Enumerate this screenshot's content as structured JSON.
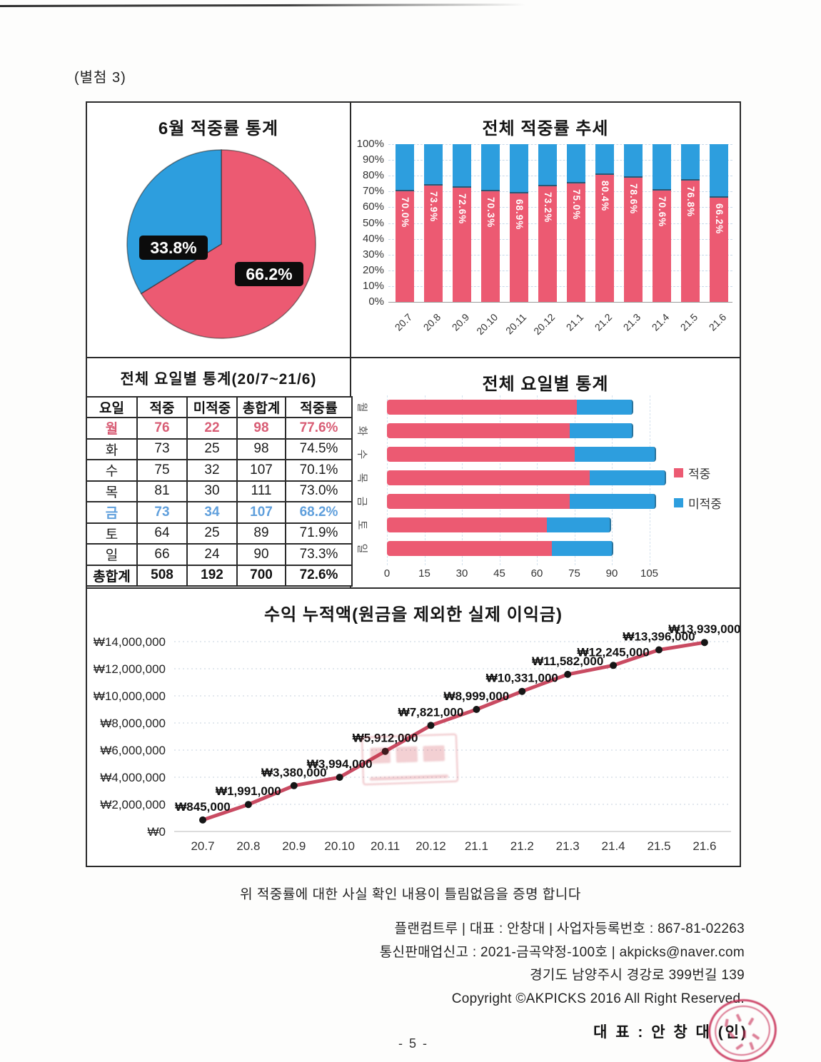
{
  "page": {
    "attachment_label": "(별첨 3)",
    "certify_text": "위 적중률에 대한 사실 확인 내용이 틀림없음을 증명 합니다",
    "company_line1": "플랜컴트루 | 대표 : 안창대 | 사업자등록번호 : 867-81-02263",
    "company_line2": "통신판매업신고 : 2021-금곡약정-100호 | akpicks@naver.com",
    "company_line3": "경기도 남양주시 경강로 399번길 139",
    "copyright": "Copyright ©AKPICKS 2016 All Right Reserved.",
    "representative": "대 표 : 안 창 대  (인)",
    "page_number": "- 5 -"
  },
  "colors": {
    "hit": "#ec5a72",
    "miss": "#2d9ede",
    "line": "#c94b62",
    "marker": "#161616",
    "table_red": "#d85c74",
    "table_blue": "#5f9fdc",
    "seal_red": "#c72c54"
  },
  "chart_data": [
    {
      "id": "june_hit_rate_pie",
      "type": "pie",
      "title": "6월 적중률 통계",
      "slices": [
        {
          "label": "66.2%",
          "value": 66.2,
          "color": "#ec5a72"
        },
        {
          "label": "33.8%",
          "value": 33.8,
          "color": "#2d9ede"
        }
      ],
      "start_angle": "12-oclock, clockwise"
    },
    {
      "id": "overall_hit_rate_trend",
      "type": "bar",
      "subtype": "stacked-100-percent-column",
      "title": "전체 적중률 추세",
      "categories": [
        "20.7",
        "20.8",
        "20.9",
        "20.10",
        "20.11",
        "20.12",
        "21.1",
        "21.2",
        "21.3",
        "21.4",
        "21.5",
        "21.6"
      ],
      "series": [
        {
          "name": "적중",
          "color": "#ec5a72",
          "values": [
            70.0,
            73.9,
            72.6,
            70.3,
            68.9,
            73.2,
            75.0,
            80.4,
            78.6,
            70.6,
            76.8,
            66.2
          ],
          "labels": [
            "70.0%",
            "73.9%",
            "72.6%",
            "70.3%",
            "68.9%",
            "73.2%",
            "75.0%",
            "80.4%",
            "78.6%",
            "70.6%",
            "76.8%",
            "66.2%"
          ]
        },
        {
          "name": "미적중",
          "color": "#2d9ede",
          "values_note": "remainder to 100%"
        }
      ],
      "ylim": [
        0,
        100
      ],
      "yticks": [
        "0%",
        "10%",
        "20%",
        "30%",
        "40%",
        "50%",
        "60%",
        "70%",
        "80%",
        "90%",
        "100%"
      ],
      "grid": true
    },
    {
      "id": "weekday_stats_table",
      "type": "table",
      "title": "전체 요일별 통계(20/7~21/6)",
      "headers": [
        "요일",
        "적중",
        "미적중",
        "총합계",
        "적중률"
      ],
      "rows": [
        {
          "cells": [
            "월",
            "76",
            "22",
            "98",
            "77.6%"
          ],
          "style": "red"
        },
        {
          "cells": [
            "화",
            "73",
            "25",
            "98",
            "74.5%"
          ],
          "style": "normal"
        },
        {
          "cells": [
            "수",
            "75",
            "32",
            "107",
            "70.1%"
          ],
          "style": "normal"
        },
        {
          "cells": [
            "목",
            "81",
            "30",
            "111",
            "73.0%"
          ],
          "style": "normal"
        },
        {
          "cells": [
            "금",
            "73",
            "34",
            "107",
            "68.2%"
          ],
          "style": "blue"
        },
        {
          "cells": [
            "토",
            "64",
            "25",
            "89",
            "71.9%"
          ],
          "style": "normal"
        },
        {
          "cells": [
            "일",
            "66",
            "24",
            "90",
            "73.3%"
          ],
          "style": "normal"
        },
        {
          "cells": [
            "총합계",
            "508",
            "192",
            "700",
            "72.6%"
          ],
          "style": "bold"
        }
      ]
    },
    {
      "id": "weekday_stats_bars",
      "type": "bar",
      "subtype": "horizontal-stacked",
      "title": "전체 요일별 통계",
      "categories": [
        "월",
        "화",
        "수",
        "목",
        "금",
        "토",
        "일"
      ],
      "series": [
        {
          "name": "적중",
          "color": "#ec5a72",
          "values": [
            76,
            73,
            75,
            81,
            73,
            64,
            66
          ]
        },
        {
          "name": "미적중",
          "color": "#2d9ede",
          "values": [
            22,
            25,
            32,
            30,
            34,
            25,
            24
          ]
        }
      ],
      "xticks": [
        0,
        15,
        30,
        45,
        60,
        75,
        90,
        105
      ],
      "xlim": [
        0,
        112
      ],
      "legend_position": "right",
      "grid": true
    },
    {
      "id": "cumulative_profit",
      "type": "line",
      "title": "수익 누적액(원금을 제외한 실제 이익금)",
      "x": [
        "20.7",
        "20.8",
        "20.9",
        "20.10",
        "20.11",
        "20.12",
        "21.1",
        "21.2",
        "21.3",
        "21.4",
        "21.5",
        "21.6"
      ],
      "values": [
        845000,
        1991000,
        3380000,
        3994000,
        5912000,
        7821000,
        8999000,
        10331000,
        11582000,
        12245000,
        13396000,
        13939000
      ],
      "labels": [
        "₩845,000",
        "₩1,991,000",
        "₩3,380,000",
        "₩3,994,000",
        "₩5,912,000",
        "₩7,821,000",
        "₩8,999,000",
        "₩10,331,000",
        "₩11,582,000",
        "₩12,245,000",
        "₩13,396,000",
        "₩13,939,000"
      ],
      "yticks_top_to_bottom": [
        "₩14,000,000",
        "₩12,000,000",
        "₩10,000,000",
        "₩8,000,000",
        "₩6,000,000",
        "₩4,000,000",
        "₩2,000,000",
        "₩0"
      ],
      "ylim": [
        0,
        14000000
      ],
      "grid": true,
      "marker": "filled-circle-black",
      "line_color": "#c94b62"
    }
  ]
}
